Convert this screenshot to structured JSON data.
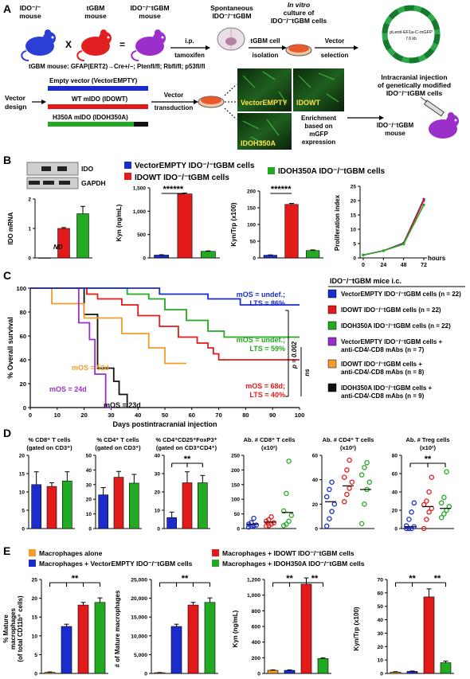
{
  "panelA": {
    "letter": "A",
    "mouse1": "IDO⁻/⁻ mouse",
    "mouse1_l1": "IDO⁻/⁻",
    "mouse1_l2": "mouse",
    "cross": "X",
    "mouse2_l1": "tGBM",
    "mouse2_l2": "mouse",
    "equals": "=",
    "mouse3_l1": "IDO⁻/⁻tGBM",
    "mouse3_l2": "mouse",
    "ip": "i.p.",
    "tamoxifen": "tamoxifen",
    "spont_l1": "Spontaneous",
    "spont_l2": "IDO⁻/⁻tGBM",
    "invitro_l1": "In vitro",
    "invitro_l2": "culture of",
    "invitro_l3": "IDO⁻/⁻tGBM cells",
    "tgbm_cell": "tGBM cell",
    "isolation": "isolation",
    "vector": "Vector",
    "selection": "selection",
    "plasmid_name": "pLenti-EF1a-C-mGFP",
    "plasmid_size": "7.6 kb",
    "genotype": "tGBM mouse: GFAP(ERT2)→Cre+/−; Ptenfl/fl; Rbfl/fl; p53fl/fl",
    "vector_design_l1": "Vector",
    "vector_design_l2": "design",
    "empty": "Empty vector (VectorEMPTY)",
    "wt": "WT mIDO (IDOWT)",
    "h350a": "H350A mIDO (IDOH350A)",
    "transduction_l1": "Vector",
    "transduction_l2": "transduction",
    "micro1": "VectorEMPTY",
    "micro2": "IDOWT",
    "micro3": "IDOH350A",
    "enrich_l1": "Enrichment",
    "enrich_l2": "based on",
    "enrich_l3": "mGFP",
    "enrich_l4": "expression",
    "intracranial_l1": "Intracranial injection",
    "intracranial_l2": "of genetically modified",
    "intracranial_l3": "IDO⁻/⁻tGBM cells",
    "mouse_final_l1": "IDO⁻/⁻tGBM",
    "mouse_final_l2": "mouse"
  },
  "panelB": {
    "letter": "B",
    "blot_ido": "IDO",
    "blot_gapdh": "GAPDH",
    "legend_empty": "VectorEMPTY IDO⁻/⁻tGBM cells",
    "legend_wt": "IDOWT IDO⁻/⁻tGBM cells",
    "legend_h350a": "IDOH350A IDO⁻/⁻tGBM cells",
    "nd": "ND",
    "sig": "******",
    "hours": "hours"
  },
  "panelC": {
    "letter": "C",
    "ylabel": "% Overall survival",
    "xlabel": "Days postintracranial injection",
    "legend_title": "IDO⁻/⁻tGBM mice i.c.",
    "legend": [
      {
        "l1": "VectorEMPTY IDO⁻/⁻tGBM cells (n = 22)",
        "l2": "",
        "color": "#1a2ccc"
      },
      {
        "l1": "IDOWT IDO⁻/⁻tGBM cells (n = 22)",
        "l2": "",
        "color": "#e31a1a"
      },
      {
        "l1": "IDOH350A IDO⁻/⁻tGBM cells (n = 22)",
        "l2": "",
        "color": "#22aa22"
      },
      {
        "l1": "VectorEMPTY IDO⁻/⁻tGBM cells +",
        "l2": "anti-CD4/-CD8 mAbs (n = 7)",
        "color": "#9b2fc9"
      },
      {
        "l1": "IDOWT IDO⁻/⁻tGBM cells +",
        "l2": "anti-CD4/-CD8 mAbs (n = 8)",
        "color": "#f39c2a"
      },
      {
        "l1": "IDOH350A IDO⁻/⁻tGBM cells +",
        "l2": "anti-CD4/-CD8 mAbs (n = 9)",
        "color": "#111111"
      }
    ],
    "ann_blue_1": "mOS = undef.;",
    "ann_blue_2": "LTS = 86%",
    "ann_green_1": "mOS = undef.;",
    "ann_green_2": "LTS = 59%",
    "ann_orange": "mOS = 52d",
    "ann_red_1": "mOS = 68d;",
    "ann_red_2": "LTS = 40%",
    "ann_purple": "mOS = 24d",
    "ann_black": "mOS = 23d",
    "p_value": "p = 0.002",
    "ns": "ns"
  },
  "panelD": {
    "letter": "D",
    "title1_l1": "% CD8⁺ T cells",
    "title1_l2": "(gated on CD3⁺)",
    "title2_l1": "% CD4⁺ T cells",
    "title2_l2": "(gated on CD3⁺)",
    "title3_l1": "% CD4⁺CD25⁺FoxP3⁺",
    "title3_l2": "(gated on CD3⁺CD4⁺)",
    "title4_l1": "Ab. # CD8⁺ T cells",
    "title4_l2": "(x10²)",
    "title5_l1": "Ab. # CD4⁺ T cells",
    "title5_l2": "(x10²)",
    "title6_l1": "Ab. # Treg cells",
    "title6_l2": "(x10²)",
    "sig": "**"
  },
  "panelE": {
    "letter": "E",
    "legend_alone": "Macrophages alone",
    "legend_empty": "Macrophages + VectorEMPTY IDO⁻/⁻tGBM cells",
    "legend_wt": "Macrophages + IDOWT IDO⁻/⁻tGBM cells",
    "legend_h350a": "Macrophages + IDOH350A IDO⁻/⁻tGBM cells",
    "ylabel1_l1": "% Mature",
    "ylabel1_l2": "macrophages",
    "ylabel1_l3": "(of total CD11b⁺ cells)",
    "ylabel2": "# of Mature macrophages",
    "ylabel3": "Kyn (ng/mL)",
    "ylabel4": "Kyn/Trp (x100)",
    "sig": "**"
  },
  "colors": {
    "empty": "#1a2ccc",
    "wt": "#e31a1a",
    "h350a": "#22aa22",
    "purple": "#9b2fc9",
    "orange": "#f39c2a",
    "black": "#111111",
    "alone": "#f39c2a"
  },
  "chart_data": [
    {
      "type": "bar",
      "title": "",
      "ylabel": "IDO mRNA",
      "categories": [
        "VectorEMPTY",
        "IDOWT",
        "IDOH350A"
      ],
      "values": [
        0,
        1.0,
        1.5
      ],
      "errors": [
        0,
        0.03,
        0.25
      ],
      "ylim": [
        0,
        2
      ],
      "yticks": [
        "0",
        "1",
        "2"
      ]
    },
    {
      "type": "bar",
      "ylabel": "Kyn (ng/mL)",
      "categories": [
        "VectorEMPTY",
        "IDOWT",
        "IDOH350A"
      ],
      "values": [
        60,
        1370,
        140
      ],
      "errors": [
        8,
        20,
        10
      ],
      "ylim": [
        0,
        1500
      ],
      "yticks": [
        "0",
        "500",
        "1,000",
        "1,500"
      ]
    },
    {
      "type": "bar",
      "ylabel": "Kyn/Trp (x100)",
      "categories": [
        "VectorEMPTY",
        "IDOWT",
        "IDOH350A"
      ],
      "values": [
        8,
        160,
        22
      ],
      "errors": [
        1,
        3,
        2
      ],
      "ylim": [
        0,
        200
      ],
      "yticks": [
        "0",
        "50",
        "100",
        "150",
        "200"
      ]
    },
    {
      "type": "line",
      "ylabel": "Proliferation index",
      "x": [
        0,
        24,
        48,
        72
      ],
      "xticks": [
        "0",
        "24",
        "48",
        "72"
      ],
      "ylim": [
        0,
        25
      ],
      "yticks": [
        "0",
        "5",
        "10",
        "15",
        "20",
        "25"
      ],
      "series": [
        {
          "name": "VectorEMPTY",
          "values": [
            1,
            2.5,
            5.2,
            20.5
          ]
        },
        {
          "name": "IDOWT",
          "values": [
            1,
            2.5,
            5.0,
            20.0
          ]
        },
        {
          "name": "IDOH350A",
          "values": [
            1,
            2.5,
            4.8,
            18.5
          ]
        }
      ]
    },
    {
      "type": "line",
      "ylabel": "% Overall survival",
      "xlabel": "Days postintracranial injection",
      "xlim": [
        0,
        100
      ],
      "ylim": [
        0,
        100
      ],
      "xticks": [
        "0",
        "10",
        "20",
        "30",
        "40",
        "50",
        "60",
        "70",
        "80",
        "90",
        "100"
      ],
      "yticks": [
        "0",
        "20",
        "40",
        "60",
        "80",
        "100"
      ],
      "series": [
        {
          "name": "VectorEMPTY",
          "steps": [
            [
              0,
              100
            ],
            [
              48,
              100
            ],
            [
              48,
              95
            ],
            [
              66,
              95
            ],
            [
              66,
              91
            ],
            [
              78,
              91
            ],
            [
              78,
              86
            ],
            [
              100,
              86
            ]
          ]
        },
        {
          "name": "IDOWT",
          "steps": [
            [
              0,
              100
            ],
            [
              21,
              100
            ],
            [
              21,
              95
            ],
            [
              25,
              95
            ],
            [
              25,
              91
            ],
            [
              34,
              91
            ],
            [
              34,
              86
            ],
            [
              40,
              86
            ],
            [
              40,
              77
            ],
            [
              48,
              77
            ],
            [
              48,
              68
            ],
            [
              55,
              68
            ],
            [
              55,
              59
            ],
            [
              62,
              59
            ],
            [
              62,
              54
            ],
            [
              66,
              54
            ],
            [
              66,
              50
            ],
            [
              68,
              50
            ],
            [
              68,
              45
            ],
            [
              70,
              45
            ],
            [
              70,
              40
            ],
            [
              100,
              40
            ]
          ]
        },
        {
          "name": "IDOH350A",
          "steps": [
            [
              0,
              100
            ],
            [
              36,
              100
            ],
            [
              36,
              95
            ],
            [
              44,
              95
            ],
            [
              44,
              91
            ],
            [
              50,
              91
            ],
            [
              50,
              82
            ],
            [
              58,
              82
            ],
            [
              58,
              73
            ],
            [
              66,
              73
            ],
            [
              66,
              64
            ],
            [
              72,
              64
            ],
            [
              72,
              59
            ],
            [
              100,
              59
            ]
          ]
        },
        {
          "name": "VectorEMPTY + anti-CD4/-CD8",
          "steps": [
            [
              0,
              100
            ],
            [
              18,
              100
            ],
            [
              18,
              71
            ],
            [
              22,
              71
            ],
            [
              22,
              57
            ],
            [
              24,
              57
            ],
            [
              24,
              28
            ],
            [
              28,
              28
            ],
            [
              28,
              0
            ],
            [
              31,
              0
            ]
          ]
        },
        {
          "name": "IDOWT + anti-CD4/-CD8",
          "steps": [
            [
              0,
              100
            ],
            [
              8,
              100
            ],
            [
              8,
              87
            ],
            [
              20,
              87
            ],
            [
              20,
              75
            ],
            [
              34,
              75
            ],
            [
              34,
              62
            ],
            [
              44,
              62
            ],
            [
              44,
              50
            ],
            [
              50,
              50
            ],
            [
              50,
              37
            ],
            [
              58,
              37
            ]
          ]
        },
        {
          "name": "IDOH350A + anti-CD4/-CD8",
          "steps": [
            [
              0,
              100
            ],
            [
              20,
              100
            ],
            [
              20,
              78
            ],
            [
              25,
              78
            ],
            [
              25,
              33
            ],
            [
              31,
              33
            ],
            [
              31,
              22
            ],
            [
              33,
              22
            ],
            [
              33,
              11
            ],
            [
              36,
              11
            ],
            [
              36,
              0
            ]
          ]
        }
      ]
    },
    {
      "type": "bar",
      "title": "% CD8+ T cells (gated on CD3+)",
      "categories": [
        "VectorEMPTY",
        "IDOWT",
        "IDOH350A"
      ],
      "values": [
        12,
        11.5,
        13
      ],
      "errors": [
        3.5,
        1,
        2.5
      ],
      "ylim": [
        0,
        20
      ],
      "yticks": [
        "0",
        "5",
        "10",
        "15",
        "20"
      ]
    },
    {
      "type": "bar",
      "title": "% CD4+ T cells (gated on CD3+)",
      "categories": [
        "VectorEMPTY",
        "IDOWT",
        "IDOH350A"
      ],
      "values": [
        23,
        35,
        31
      ],
      "errors": [
        5,
        4,
        6
      ],
      "ylim": [
        0,
        50
      ],
      "yticks": [
        "0",
        "10",
        "20",
        "30",
        "40",
        "50"
      ]
    },
    {
      "type": "bar",
      "title": "% CD4+CD25+FoxP3+ (gated on CD3+CD4+)",
      "categories": [
        "VectorEMPTY",
        "IDOWT",
        "IDOH350A"
      ],
      "values": [
        6,
        25,
        25
      ],
      "errors": [
        3,
        6,
        4
      ],
      "ylim": [
        0,
        40
      ],
      "yticks": [
        "0",
        "10",
        "20",
        "30",
        "40"
      ]
    },
    {
      "type": "scatter",
      "title": "Ab. # CD8+ T cells (x10²)",
      "ylim": [
        0,
        250
      ],
      "yticks": [
        "0",
        "50",
        "100",
        "150",
        "200",
        "250"
      ],
      "series": [
        {
          "name": "VectorEMPTY",
          "values": [
            5,
            8,
            10,
            12,
            15,
            20,
            35
          ],
          "mean": 15
        },
        {
          "name": "IDOWT",
          "values": [
            8,
            10,
            15,
            20,
            25,
            30,
            40
          ],
          "mean": 22
        },
        {
          "name": "IDOH350A",
          "values": [
            10,
            15,
            25,
            45,
            60,
            120,
            230
          ],
          "mean": 55
        }
      ]
    },
    {
      "type": "scatter",
      "title": "Ab. # CD4+ T cells (x10²)",
      "ylim": [
        0,
        60
      ],
      "yticks": [
        "0",
        "20",
        "40",
        "60"
      ],
      "series": [
        {
          "name": "VectorEMPTY",
          "values": [
            2,
            8,
            14,
            20,
            26,
            32,
            38
          ],
          "mean": 22
        },
        {
          "name": "IDOWT",
          "values": [
            22,
            28,
            33,
            38,
            42,
            48,
            56
          ],
          "mean": 35
        },
        {
          "name": "IDOH350A",
          "values": [
            4,
            20,
            32,
            38,
            44,
            50,
            54
          ],
          "mean": 32
        }
      ]
    },
    {
      "type": "scatter",
      "title": "Ab. # Treg cells (x10²)",
      "ylim": [
        0,
        80
      ],
      "yticks": [
        "0",
        "20",
        "40",
        "60",
        "80"
      ],
      "series": [
        {
          "name": "VectorEMPTY",
          "values": [
            0,
            0,
            0,
            2,
            3,
            10,
            18,
            28
          ],
          "mean": 2
        },
        {
          "name": "IDOWT",
          "values": [
            0,
            10,
            18,
            22,
            26,
            30,
            40,
            56
          ],
          "mean": 24
        },
        {
          "name": "IDOH350A",
          "values": [
            12,
            16,
            20,
            24,
            28,
            34,
            62
          ],
          "mean": 22
        }
      ]
    },
    {
      "type": "bar",
      "ylabel": "% Mature macrophages (of total CD11b+ cells)",
      "categories": [
        "Alone",
        "VectorEMPTY",
        "IDOWT",
        "IDOH350A"
      ],
      "values": [
        0.3,
        12.5,
        18.2,
        18.9
      ],
      "errors": [
        0.1,
        0.6,
        0.7,
        1.2
      ],
      "ylim": [
        0,
        25
      ],
      "yticks": [
        "0",
        "5",
        "10",
        "15",
        "20",
        "25"
      ]
    },
    {
      "type": "bar",
      "ylabel": "# of Mature macrophages",
      "categories": [
        "Alone",
        "VectorEMPTY",
        "IDOWT",
        "IDOH350A"
      ],
      "values": [
        200,
        12500,
        18200,
        18900
      ],
      "errors": [
        50,
        600,
        700,
        1200
      ],
      "ylim": [
        0,
        25000
      ],
      "yticks": [
        "0",
        "5,000",
        "10,000",
        "15,000",
        "20,000",
        "25,000"
      ]
    },
    {
      "type": "bar",
      "ylabel": "Kyn (ng/mL)",
      "categories": [
        "Alone",
        "VectorEMPTY",
        "IDOWT",
        "IDOH350A"
      ],
      "values": [
        40,
        40,
        1140,
        190
      ],
      "errors": [
        5,
        5,
        80,
        10
      ],
      "ylim": [
        0,
        1200
      ],
      "yticks": [
        "0",
        "200",
        "400",
        "600",
        "800",
        "1,000",
        "1,200"
      ]
    },
    {
      "type": "bar",
      "ylabel": "Kyn/Trp (x100)",
      "categories": [
        "Alone",
        "VectorEMPTY",
        "IDOWT",
        "IDOH350A"
      ],
      "values": [
        1,
        1.5,
        57,
        8
      ],
      "errors": [
        0.3,
        0.3,
        6,
        1.2
      ],
      "ylim": [
        0,
        70
      ],
      "yticks": [
        "0",
        "10",
        "20",
        "30",
        "40",
        "50",
        "60",
        "70"
      ]
    }
  ]
}
